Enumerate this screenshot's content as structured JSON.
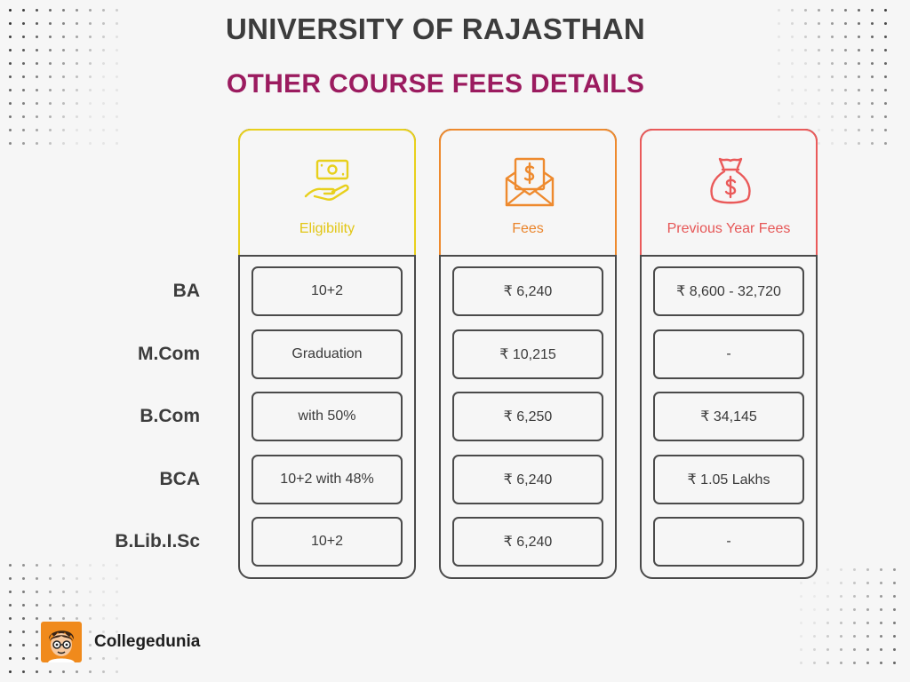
{
  "header": {
    "title": "UNIVERSITY OF RAJASTHAN",
    "subtitle": "OTHER COURSE FEES DETAILS"
  },
  "colors": {
    "title": "#3c3c3c",
    "subtitle": "#9b1b5f",
    "eligibility_accent": "#e8d01c",
    "fees_accent": "#ee8a2e",
    "previous_accent": "#ea5a5a",
    "border": "#4a4a4a"
  },
  "columns": [
    {
      "label": "Eligibility",
      "icon": "hand-money-icon"
    },
    {
      "label": "Fees",
      "icon": "envelope-dollar-icon"
    },
    {
      "label": "Previous Year Fees",
      "icon": "money-bag-icon"
    }
  ],
  "rows": [
    {
      "course": "BA",
      "eligibility": "10+2",
      "fees": "₹ 6,240",
      "previous_fees": "₹ 8,600 - 32,720"
    },
    {
      "course": "M.Com",
      "eligibility": "Graduation",
      "fees": "₹ 10,215",
      "previous_fees": "-"
    },
    {
      "course": "B.Com",
      "eligibility": "with 50%",
      "fees": "₹ 6,250",
      "previous_fees": "₹ 34,145"
    },
    {
      "course": "BCA",
      "eligibility": "10+2 with 48%",
      "fees": "₹ 6,240",
      "previous_fees": "₹ 1.05 Lakhs"
    },
    {
      "course": "B.Lib.I.Sc",
      "eligibility": "10+2",
      "fees": "₹ 6,240",
      "previous_fees": "-"
    }
  ],
  "brand": {
    "name": "Collegedunia",
    "icon": "collegedunia-logo-icon"
  }
}
